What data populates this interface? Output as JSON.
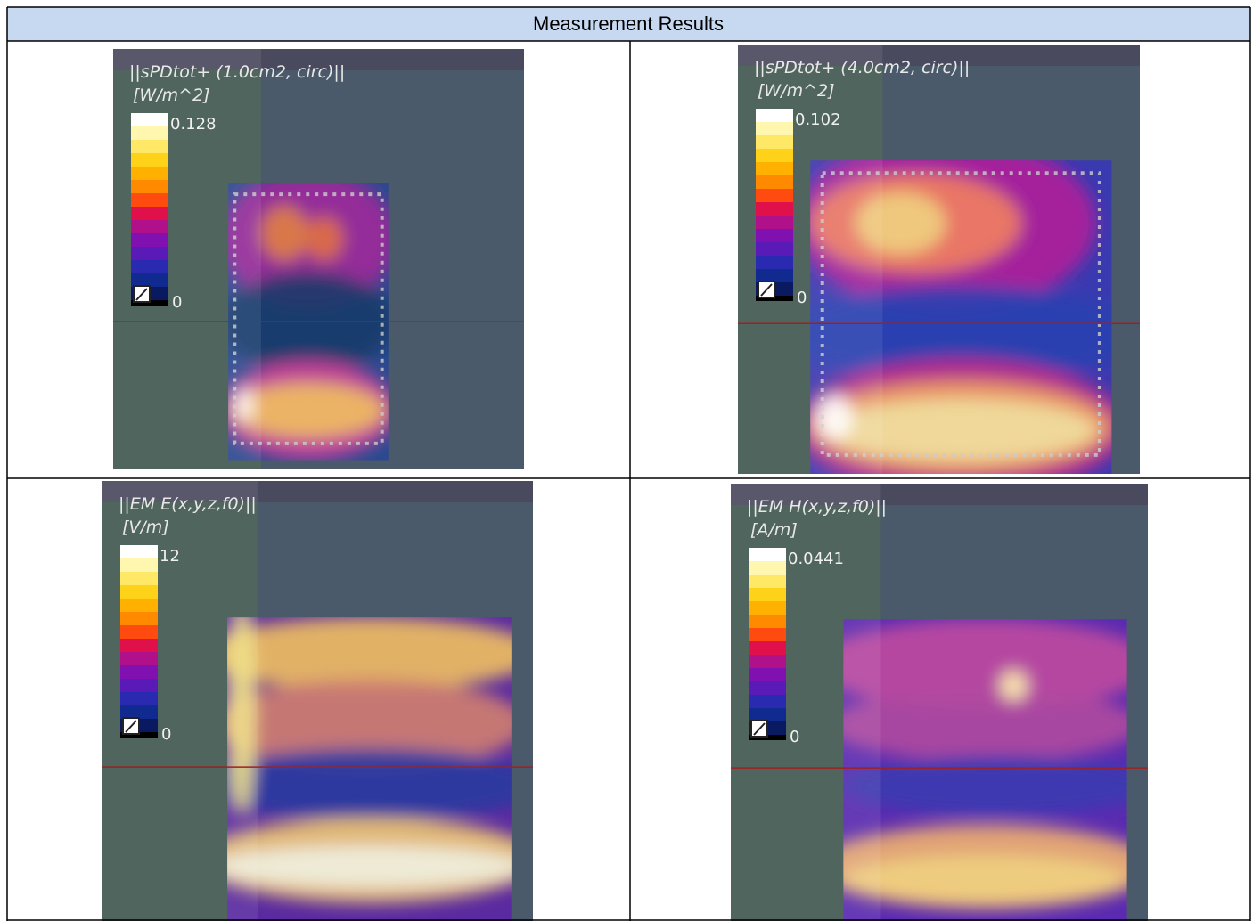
{
  "table": {
    "header": "Measurement Results",
    "cells": [
      {
        "title": "||sPDtot+ (1.0cm2, circ)||",
        "unit": "[W/m^2]",
        "max": "0.128",
        "min": "0"
      },
      {
        "title": "||sPDtot+ (4.0cm2, circ)||",
        "unit": "[W/m^2]",
        "max": "0.102",
        "min": "0"
      },
      {
        "title": "||EM E(x,y,z,f0)||",
        "unit": "[V/m]",
        "max": "12",
        "min": "0"
      },
      {
        "title": "||EM H(x,y,z,f0)||",
        "unit": "[A/m]",
        "max": "0.0441",
        "min": "0"
      }
    ]
  }
}
